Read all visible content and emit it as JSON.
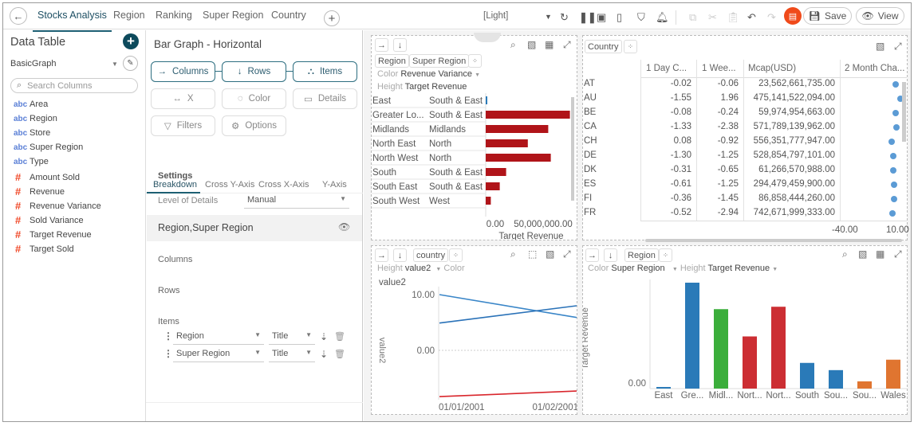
{
  "topbar": {
    "tabs": [
      "Stocks Analysis",
      "Region",
      "Ranking",
      "Super Region",
      "Country"
    ],
    "theme": "[Light]",
    "save_label": "Save",
    "view_label": "View"
  },
  "data_table": {
    "title": "Data Table",
    "source": "BasicGraph",
    "search_placeholder": "Search Columns",
    "columns": [
      {
        "type": "abc",
        "name": "Area"
      },
      {
        "type": "abc",
        "name": "Region"
      },
      {
        "type": "abc",
        "name": "Store"
      },
      {
        "type": "abc",
        "name": "Super Region"
      },
      {
        "type": "abc",
        "name": "Type"
      },
      {
        "type": "#",
        "name": "Amount Sold"
      },
      {
        "type": "#",
        "name": "Revenue"
      },
      {
        "type": "#",
        "name": "Revenue Variance"
      },
      {
        "type": "#",
        "name": "Sold Variance"
      },
      {
        "type": "#",
        "name": "Target Revenue"
      },
      {
        "type": "#",
        "name": "Target Sold"
      }
    ]
  },
  "visual": {
    "title": "Bar Graph - Horizontal",
    "buttons": {
      "columns": "Columns",
      "rows": "Rows",
      "items": "Items",
      "x": "X",
      "color": "Color",
      "details": "Details",
      "filters": "Filters",
      "options": "Options"
    },
    "tabs": [
      "Breakdown",
      "Cross Y-Axis",
      "Cross X-Axis",
      "Y-Axis"
    ],
    "settings_label": "Settings",
    "level_label": "Level of Details",
    "level_value": "Manual",
    "breakdown_row": "Region,Super Region",
    "columns_label": "Columns",
    "rows_label": "Rows",
    "items_label": "Items",
    "items": [
      {
        "field": "Region",
        "mode": "Title"
      },
      {
        "field": "Super Region",
        "mode": "Title"
      }
    ]
  },
  "colors": {
    "accent": "#1d5f73",
    "chat": "#f04a1a",
    "bar_red": "#b01419",
    "blue": "#2a7ab8",
    "green": "#3bae3b",
    "red": "#cc2e33",
    "orange": "#e07530",
    "dot": "#5b9bd5"
  },
  "chart_data": [
    {
      "type": "bar",
      "orientation": "horizontal",
      "chips": [
        "Region",
        "Super Region"
      ],
      "color_label": "Color",
      "color_field": "Revenue Variance",
      "height_label": "Height",
      "height_field": "Target Revenue",
      "rows": [
        {
          "region": "East",
          "super": "South & East",
          "value": 1000000,
          "color": "#2a7ab8"
        },
        {
          "region": "Greater Lo...",
          "super": "South & East",
          "value": 66000000,
          "color": "#b01419"
        },
        {
          "region": "Midlands",
          "super": "Midlands",
          "value": 49000000,
          "color": "#b01419"
        },
        {
          "region": "North East",
          "super": "North",
          "value": 33000000,
          "color": "#b01419"
        },
        {
          "region": "North West",
          "super": "North",
          "value": 51000000,
          "color": "#b01419"
        },
        {
          "region": "South",
          "super": "South & East",
          "value": 16000000,
          "color": "#b01419"
        },
        {
          "region": "South East",
          "super": "South & East",
          "value": 11000000,
          "color": "#b01419"
        },
        {
          "region": "South West",
          "super": "West",
          "value": 4000000,
          "color": "#b01419"
        }
      ],
      "xticks": [
        "0.00",
        "50,000,000.00"
      ],
      "xlabel": "Target Revenue"
    },
    {
      "type": "table",
      "chip": "Country",
      "headers": [
        "1 Day C...",
        "1 Wee...",
        "Mcap(USD)",
        "2 Month Cha..."
      ],
      "rows": [
        {
          "c": "AT",
          "d1": "-0.02",
          "w1": "-0.06",
          "mcap": "23,562,661,735.00",
          "m2": 5.7
        },
        {
          "c": "AU",
          "d1": "-1.55",
          "w1": "1.96",
          "mcap": "475,141,522,094.00",
          "m2": 15
        },
        {
          "c": "BE",
          "d1": "-0.08",
          "w1": "-0.24",
          "mcap": "59,974,954,663.00",
          "m2": 5.7
        },
        {
          "c": "CA",
          "d1": "-1.33",
          "w1": "-2.38",
          "mcap": "571,789,139,962.00",
          "m2": 6.5
        },
        {
          "c": "CH",
          "d1": "0.08",
          "w1": "-0.92",
          "mcap": "556,351,777,947.00",
          "m2": 1.4
        },
        {
          "c": "DE",
          "d1": "-1.30",
          "w1": "-1.25",
          "mcap": "528,854,797,101.00",
          "m2": 3
        },
        {
          "c": "DK",
          "d1": "-0.31",
          "w1": "-0.65",
          "mcap": "61,266,570,988.00",
          "m2": 3.5
        },
        {
          "c": "ES",
          "d1": "-0.61",
          "w1": "-1.25",
          "mcap": "294,479,459,900.00",
          "m2": 3.8
        },
        {
          "c": "FI",
          "d1": "-0.36",
          "w1": "-1.45",
          "mcap": "86,858,444,260.00",
          "m2": 3.8
        },
        {
          "c": "FR",
          "d1": "-0.52",
          "w1": "-2.94",
          "mcap": "742,671,999,333.00",
          "m2": 2.3
        }
      ],
      "axis_ticks": [
        "-40.00",
        "10.00"
      ]
    },
    {
      "type": "line",
      "chip": "country",
      "height_label": "Height",
      "height_field": "value2",
      "color_label": "Color",
      "title": "value2",
      "ylabel": "value2",
      "yticks": [
        "10.00",
        "0.00"
      ],
      "xticks": [
        "01/01/2001",
        "01/02/2001"
      ],
      "series": [
        {
          "values": [
            10,
            5.9
          ],
          "color": "#3a86c8"
        },
        {
          "values": [
            4.9,
            8
          ],
          "color": "#2a72b8"
        },
        {
          "values": [
            -8.3,
            -7.3
          ],
          "color": "#d9262c"
        }
      ]
    },
    {
      "type": "bar",
      "chip": "Region",
      "color_label": "Color",
      "color_field": "Super Region",
      "height_label": "Height",
      "height_field": "Target Revenue",
      "ylabel": "Target Revenue",
      "yticks": [
        "0.00"
      ],
      "categories": [
        "East",
        "Gre...",
        "Midl...",
        "Nort...",
        "Nort...",
        "South",
        "Sou...",
        "Sou...",
        "Wales"
      ],
      "values": [
        1000000,
        66000000,
        49500000,
        32500000,
        51000000,
        16000000,
        11500000,
        4500000,
        18000000
      ],
      "colors": [
        "#2a7ab8",
        "#2a7ab8",
        "#3bae3b",
        "#cc2e33",
        "#cc2e33",
        "#2a7ab8",
        "#2a7ab8",
        "#e07530",
        "#e07530"
      ]
    }
  ]
}
